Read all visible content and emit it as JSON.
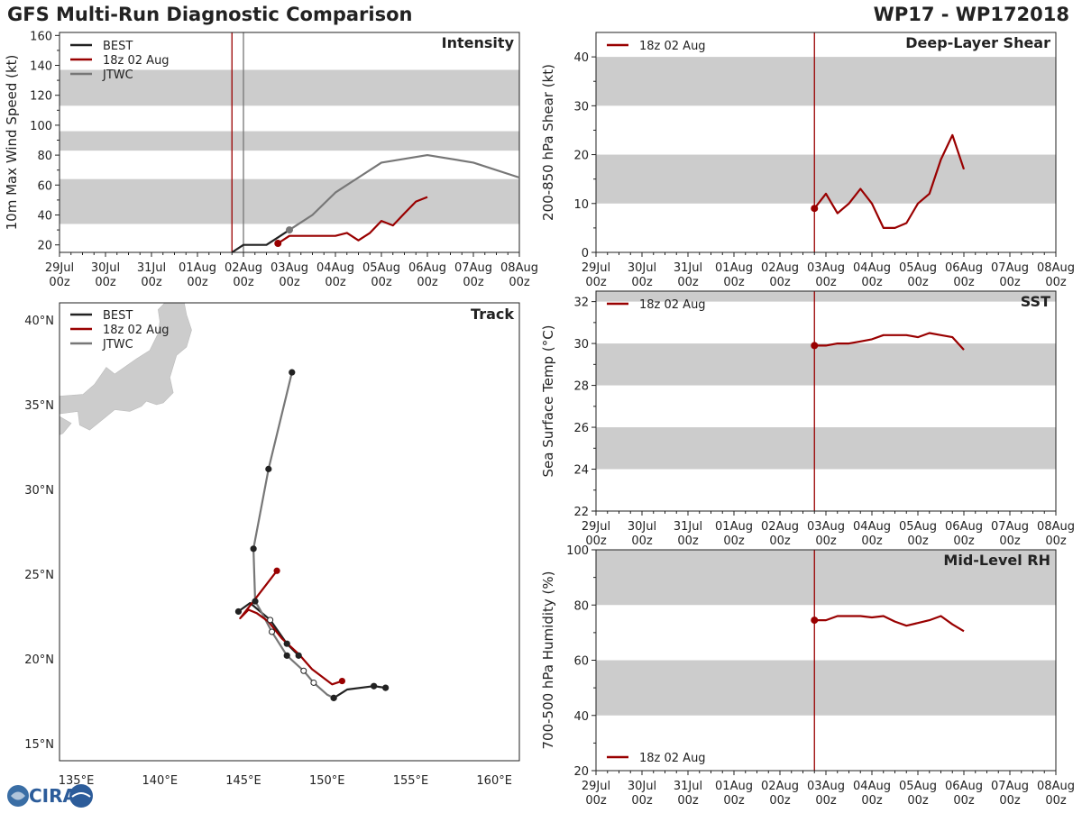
{
  "header": {
    "title": "GFS Multi-Run Diagnostic Comparison",
    "storm_id": "WP17 - WP172018"
  },
  "logo": {
    "text": "CIRA"
  },
  "colors": {
    "best": "#222222",
    "run": "#990000",
    "jtwc": "#777777",
    "band": "#cccccc",
    "land": "#cccccc"
  },
  "chart_data": [
    {
      "id": "intensity",
      "type": "line",
      "title": "Intensity",
      "ylabel": "10m Max Wind Speed (kt)",
      "xlabel": "",
      "x_ticks": [
        "29Jul\n00z",
        "30Jul\n00z",
        "31Jul\n00z",
        "01Aug\n00z",
        "02Aug\n00z",
        "03Aug\n00z",
        "04Aug\n00z",
        "05Aug\n00z",
        "06Aug\n00z",
        "07Aug\n00z",
        "08Aug\n00z"
      ],
      "xlim": [
        0,
        10
      ],
      "ylim": [
        15,
        162
      ],
      "y_ticks": [
        20,
        40,
        60,
        80,
        100,
        120,
        140,
        160
      ],
      "bands": [
        [
          34,
          64
        ],
        [
          83,
          96
        ],
        [
          113,
          137
        ]
      ],
      "vlines": [
        {
          "x": 3.75,
          "color": "#990000"
        },
        {
          "x": 4.0,
          "color": "#777777"
        }
      ],
      "legend": [
        "BEST",
        "18z 02 Aug",
        "JTWC"
      ],
      "series": [
        {
          "name": "BEST",
          "color": "#222222",
          "x": [
            3.75,
            4.0,
            4.5,
            4.75,
            5.0
          ],
          "y": [
            15,
            20,
            20,
            25,
            30
          ],
          "marker_end": false
        },
        {
          "name": "18z 02 Aug",
          "color": "#990000",
          "x": [
            4.75,
            5.0,
            5.25,
            5.5,
            5.75,
            6.0,
            6.25,
            6.5,
            6.75,
            7.0,
            7.25,
            7.5,
            7.75,
            8.0
          ],
          "y": [
            21,
            26,
            26,
            26,
            26,
            26,
            28,
            23,
            28,
            36,
            33,
            41,
            49,
            52
          ],
          "start_marker": true
        },
        {
          "name": "JTWC",
          "color": "#777777",
          "x": [
            5.0,
            5.5,
            6.0,
            6.5,
            7.0,
            8.0,
            9.0,
            10.0
          ],
          "y": [
            30,
            40,
            55,
            65,
            75,
            80,
            75,
            65
          ],
          "start_marker": true
        }
      ]
    },
    {
      "id": "shear",
      "type": "line",
      "title": "Deep-Layer Shear",
      "ylabel": "200-850 hPa Shear (kt)",
      "x_ticks": [
        "29Jul\n00z",
        "30Jul\n00z",
        "31Jul\n00z",
        "01Aug\n00z",
        "02Aug\n00z",
        "03Aug\n00z",
        "04Aug\n00z",
        "05Aug\n00z",
        "06Aug\n00z",
        "07Aug\n00z",
        "08Aug\n00z"
      ],
      "xlim": [
        0,
        10
      ],
      "ylim": [
        0,
        45
      ],
      "y_ticks": [
        0,
        10,
        20,
        30,
        40
      ],
      "bands": [
        [
          10,
          20
        ],
        [
          30,
          40
        ]
      ],
      "vlines": [
        {
          "x": 4.75,
          "color": "#990000"
        }
      ],
      "legend": [
        "18z 02 Aug"
      ],
      "series": [
        {
          "name": "18z 02 Aug",
          "color": "#990000",
          "x": [
            4.75,
            5.0,
            5.25,
            5.5,
            5.75,
            6.0,
            6.25,
            6.5,
            6.75,
            7.0,
            7.25,
            7.5,
            7.75,
            8.0
          ],
          "y": [
            9,
            12,
            8,
            10,
            13,
            10,
            5,
            5,
            6,
            10,
            12,
            19,
            24,
            17
          ],
          "start_marker": true
        }
      ]
    },
    {
      "id": "sst",
      "type": "line",
      "title": "SST",
      "ylabel": "Sea Surface Temp (°C)",
      "x_ticks": [
        "29Jul\n00z",
        "30Jul\n00z",
        "31Jul\n00z",
        "01Aug\n00z",
        "02Aug\n00z",
        "03Aug\n00z",
        "04Aug\n00z",
        "05Aug\n00z",
        "06Aug\n00z",
        "07Aug\n00z",
        "08Aug\n00z"
      ],
      "xlim": [
        0,
        10
      ],
      "ylim": [
        22,
        32.5
      ],
      "y_ticks": [
        22,
        24,
        26,
        28,
        30,
        32
      ],
      "bands": [
        [
          24,
          26
        ],
        [
          28,
          30
        ],
        [
          32,
          34
        ]
      ],
      "vlines": [
        {
          "x": 4.75,
          "color": "#990000"
        }
      ],
      "legend": [
        "18z 02 Aug"
      ],
      "series": [
        {
          "name": "18z 02 Aug",
          "color": "#990000",
          "x": [
            4.75,
            5.0,
            5.25,
            5.5,
            5.75,
            6.0,
            6.25,
            6.5,
            6.75,
            7.0,
            7.25,
            7.5,
            7.75,
            8.0
          ],
          "y": [
            29.9,
            29.9,
            30.0,
            30.0,
            30.1,
            30.2,
            30.4,
            30.4,
            30.4,
            30.3,
            30.5,
            30.4,
            30.3,
            29.7
          ],
          "start_marker": true
        }
      ]
    },
    {
      "id": "rh",
      "type": "line",
      "title": "Mid-Level RH",
      "ylabel": "700-500 hPa Humidity (%)",
      "x_ticks": [
        "29Jul\n00z",
        "30Jul\n00z",
        "31Jul\n00z",
        "01Aug\n00z",
        "02Aug\n00z",
        "03Aug\n00z",
        "04Aug\n00z",
        "05Aug\n00z",
        "06Aug\n00z",
        "07Aug\n00z",
        "08Aug\n00z"
      ],
      "xlim": [
        0,
        10
      ],
      "ylim": [
        20,
        100
      ],
      "y_ticks": [
        20,
        40,
        60,
        80,
        100
      ],
      "bands": [
        [
          40,
          60
        ],
        [
          80,
          100
        ]
      ],
      "vlines": [
        {
          "x": 4.75,
          "color": "#990000"
        }
      ],
      "legend": [
        "18z 02 Aug"
      ],
      "legend_position": "bottom-left",
      "series": [
        {
          "name": "18z 02 Aug",
          "color": "#990000",
          "x": [
            4.75,
            5.0,
            5.25,
            5.5,
            5.75,
            6.0,
            6.25,
            6.5,
            6.75,
            7.0,
            7.25,
            7.5,
            7.75,
            8.0
          ],
          "y": [
            74.5,
            74.5,
            76,
            76,
            76,
            75.5,
            76,
            74,
            72.5,
            73.5,
            74.5,
            76,
            73,
            70.5
          ],
          "start_marker": true
        }
      ]
    },
    {
      "id": "track",
      "type": "scatter",
      "title": "Track",
      "xlim": [
        134,
        161.5
      ],
      "ylim": [
        14,
        41
      ],
      "x_ticks": [
        "135°E",
        "140°E",
        "145°E",
        "150°E",
        "155°E",
        "160°E"
      ],
      "x_tick_values": [
        135,
        140,
        145,
        150,
        155,
        160
      ],
      "y_ticks": [
        "15°N",
        "20°N",
        "25°N",
        "30°N",
        "35°N",
        "40°N"
      ],
      "y_tick_values": [
        15,
        20,
        25,
        30,
        35,
        40
      ],
      "legend": [
        "BEST",
        "18z 02 Aug",
        "JTWC"
      ],
      "series": [
        {
          "name": "BEST",
          "color": "#222222",
          "lon": [
            153.5,
            152.8,
            151.2,
            150.4
          ],
          "lat": [
            18.3,
            18.4,
            18.2,
            17.7
          ],
          "markers": [
            1,
            1,
            0,
            1
          ]
        },
        {
          "name": "18z 02 Aug",
          "color": "#990000",
          "lon": [
            150.9,
            150.3,
            149.1,
            148.3,
            147.3,
            146.9,
            146.5,
            145.8,
            145.3,
            144.8,
            145.6,
            146.3,
            147.0
          ],
          "lat": [
            18.7,
            18.5,
            19.4,
            20.3,
            21.2,
            21.7,
            22.2,
            22.7,
            22.9,
            22.4,
            23.4,
            24.3,
            25.2
          ],
          "markers": [
            1,
            0,
            0,
            0,
            0,
            0,
            0,
            0,
            0,
            0,
            0,
            0,
            1
          ]
        },
        {
          "name": "JTWC",
          "color": "#777777",
          "lon": [
            150.4,
            150.0,
            149.2,
            148.6,
            147.6,
            146.7,
            146.0,
            145.7,
            145.6,
            146.5,
            147.9
          ],
          "lat": [
            17.7,
            17.9,
            18.6,
            19.3,
            20.2,
            21.6,
            22.9,
            23.4,
            26.5,
            31.2,
            36.9
          ],
          "markers": [
            1,
            0,
            2,
            2,
            1,
            2,
            0,
            1,
            1,
            1,
            1
          ]
        },
        {
          "name": "BEST-early",
          "color": "#222222",
          "lon": [
            144.7,
            145.4,
            146.6,
            147.6,
            148.3
          ],
          "lat": [
            22.8,
            23.3,
            22.3,
            20.9,
            20.2
          ],
          "markers": [
            1,
            0,
            2,
            1,
            1
          ]
        }
      ]
    }
  ]
}
